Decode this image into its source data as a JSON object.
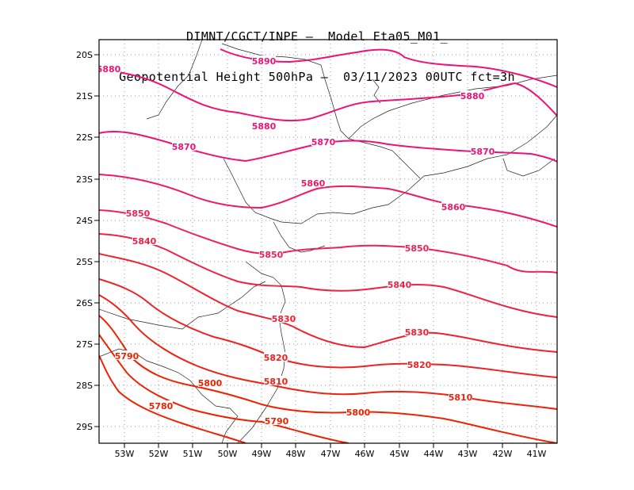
{
  "title": {
    "line1": "DIMNT/CGCT/INPE –  Model Eta05_M01_",
    "line2": "Geopotential Height 500hPa –  03/11/2023 00UTC fct=3h"
  },
  "axes": {
    "lat_labels": [
      "20S",
      "21S",
      "22S",
      "23S",
      "24S",
      "25S",
      "26S",
      "27S",
      "28S",
      "29S"
    ],
    "lon_labels": [
      "53W",
      "52W",
      "51W",
      "50W",
      "49W",
      "48W",
      "47W",
      "46W",
      "45W",
      "44W",
      "43W",
      "42W",
      "41W"
    ]
  },
  "colors": {
    "high": "#ee1177",
    "mid": "#ee2244",
    "low": "#ee2200"
  },
  "contours": [
    {
      "value": "5890",
      "color": "#ee1177",
      "labels": [
        "5890"
      ]
    },
    {
      "value": "5880",
      "color": "#ee1177",
      "labels": [
        "5880",
        "5880",
        "5880"
      ]
    },
    {
      "value": "5870",
      "color": "#ee1177",
      "labels": [
        "5870",
        "5870",
        "5870"
      ]
    },
    {
      "value": "5860",
      "color": "#ee1a66",
      "labels": [
        "5860",
        "5860"
      ]
    },
    {
      "value": "5850",
      "color": "#ee2255",
      "labels": [
        "5850",
        "5850",
        "5850"
      ]
    },
    {
      "value": "5840",
      "color": "#ee2244",
      "labels": [
        "5840",
        "5840"
      ]
    },
    {
      "value": "5830",
      "color": "#ee2233",
      "labels": [
        "5830",
        "5830"
      ]
    },
    {
      "value": "5820",
      "color": "#ee2222",
      "labels": [
        "5820",
        "5820"
      ]
    },
    {
      "value": "5810",
      "color": "#ee2211",
      "labels": [
        "5810",
        "5810"
      ]
    },
    {
      "value": "5800",
      "color": "#ee2200",
      "labels": [
        "5800",
        "5800"
      ]
    },
    {
      "value": "5790",
      "color": "#ee2200",
      "labels": [
        "5790",
        "5790"
      ]
    },
    {
      "value": "5780",
      "color": "#ee2200",
      "labels": [
        "5780"
      ]
    }
  ]
}
